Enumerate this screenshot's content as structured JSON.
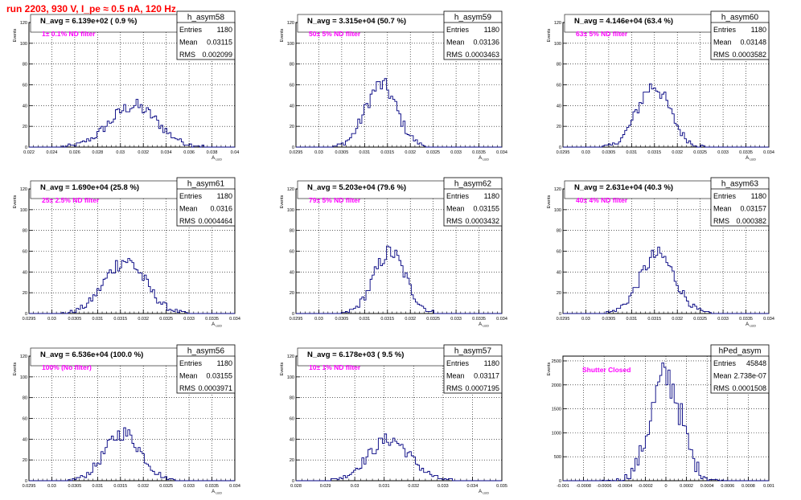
{
  "canvas_title": "run 2203,   930 V, I_pe ≈ 0.5 nA, 120 Hz",
  "colors": {
    "hist": "#000080",
    "annotation": "#ff00ff",
    "title": "#ff0000",
    "grid": "#000000"
  },
  "chart_data": [
    {
      "type": "histogram",
      "name": "h_asym58",
      "ylabel": "Events",
      "xlabel": "A_LED",
      "xlim": [
        0.022,
        0.04
      ],
      "ylim": [
        0,
        120
      ],
      "xticks": [
        "0.022",
        "0.024",
        "0.026",
        "0.028",
        "0.03",
        "0.032",
        "0.034",
        "0.036",
        "0.038",
        "0.04"
      ],
      "yticks": [
        "0",
        "20",
        "40",
        "60",
        "80",
        "100",
        "120"
      ],
      "navg": "N_avg = 6.139e+02 ( 0.9 %)",
      "filter": "1± 0.1% ND filter",
      "stats": {
        "Entries": "1180",
        "Mean": "0.03115",
        "RMS": "0.002099"
      },
      "mean": 0.03115,
      "rms": 0.002099,
      "peak": 45
    },
    {
      "type": "histogram",
      "name": "h_asym59",
      "ylabel": "Events",
      "xlabel": "A_LED",
      "xlim": [
        0.0295,
        0.034
      ],
      "ylim": [
        0,
        120
      ],
      "xticks": [
        "0.0295",
        "0.03",
        "0.0305",
        "0.031",
        "0.0315",
        "0.032",
        "0.0325",
        "0.033",
        "0.0335",
        "0.034"
      ],
      "yticks": [
        "0",
        "20",
        "40",
        "60",
        "80",
        "100",
        "120"
      ],
      "navg": "N_avg = 3.315e+04 (50.7 %)",
      "filter": "50± 5% ND filter",
      "stats": {
        "Entries": "1180",
        "Mean": "0.03136",
        "RMS": "0.0003463"
      },
      "mean": 0.03136,
      "rms": 0.0003463,
      "peak": 68
    },
    {
      "type": "histogram",
      "name": "h_asym60",
      "ylabel": "Events",
      "xlabel": "A_LED",
      "xlim": [
        0.0295,
        0.034
      ],
      "ylim": [
        0,
        120
      ],
      "xticks": [
        "0.0295",
        "0.03",
        "0.0305",
        "0.031",
        "0.0315",
        "0.032",
        "0.0325",
        "0.033",
        "0.0335",
        "0.034"
      ],
      "yticks": [
        "0",
        "20",
        "40",
        "60",
        "80",
        "100",
        "120"
      ],
      "navg": "N_avg = 4.146e+04 (63.4 %)",
      "filter": "63± 5% ND filter",
      "stats": {
        "Entries": "1180",
        "Mean": "0.03148",
        "RMS": "0.0003582"
      },
      "mean": 0.03148,
      "rms": 0.0003582,
      "peak": 67
    },
    {
      "type": "histogram",
      "name": "h_asym61",
      "ylabel": "Events",
      "xlabel": "A_LED",
      "xlim": [
        0.0295,
        0.034
      ],
      "ylim": [
        0,
        120
      ],
      "xticks": [
        "0.0295",
        "0.03",
        "0.0305",
        "0.031",
        "0.0315",
        "0.032",
        "0.0325",
        "0.033",
        "0.0335",
        "0.034"
      ],
      "yticks": [
        "0",
        "20",
        "40",
        "60",
        "80",
        "100",
        "120"
      ],
      "navg": "N_avg = 1.690e+04 (25.8 %)",
      "filter": "25± 2.5% ND filter",
      "stats": {
        "Entries": "1180",
        "Mean": "0.0316",
        "RMS": "0.0004464"
      },
      "mean": 0.0316,
      "rms": 0.0004464,
      "peak": 58
    },
    {
      "type": "histogram",
      "name": "h_asym62",
      "ylabel": "Events",
      "xlabel": "A_LED",
      "xlim": [
        0.0295,
        0.034
      ],
      "ylim": [
        0,
        120
      ],
      "xticks": [
        "0.0295",
        "0.03",
        "0.0305",
        "0.031",
        "0.0315",
        "0.032",
        "0.0325",
        "0.033",
        "0.0335",
        "0.034"
      ],
      "yticks": [
        "0",
        "20",
        "40",
        "60",
        "80",
        "100",
        "120"
      ],
      "navg": "N_avg = 5.203e+04 (79.6 %)",
      "filter": "79± 5% ND filter",
      "stats": {
        "Entries": "1180",
        "Mean": "0.03155",
        "RMS": "0.0003432"
      },
      "mean": 0.03155,
      "rms": 0.0003432,
      "peak": 67
    },
    {
      "type": "histogram",
      "name": "h_asym63",
      "ylabel": "Events",
      "xlabel": "A_LED",
      "xlim": [
        0.0295,
        0.034
      ],
      "ylim": [
        0,
        120
      ],
      "xticks": [
        "0.0295",
        "0.03",
        "0.0305",
        "0.031",
        "0.0315",
        "0.032",
        "0.0325",
        "0.033",
        "0.0335",
        "0.034"
      ],
      "yticks": [
        "0",
        "20",
        "40",
        "60",
        "80",
        "100",
        "120"
      ],
      "navg": "N_avg = 2.631e+04 (40.3 %)",
      "filter": "40± 4% ND filter",
      "stats": {
        "Entries": "1180",
        "Mean": "0.03157",
        "RMS": "0.000382"
      },
      "mean": 0.03157,
      "rms": 0.000382,
      "peak": 64
    },
    {
      "type": "histogram",
      "name": "h_asym56",
      "ylabel": "Events",
      "xlabel": "A_LED",
      "xlim": [
        0.0295,
        0.034
      ],
      "ylim": [
        0,
        120
      ],
      "xticks": [
        "0.0295",
        "0.03",
        "0.0305",
        "0.031",
        "0.0315",
        "0.032",
        "0.0325",
        "0.033",
        "0.0335",
        "0.034"
      ],
      "yticks": [
        "0",
        "20",
        "40",
        "60",
        "80",
        "100",
        "120"
      ],
      "navg": "N_avg = 6.536e+04 (100.0 %)",
      "filter": "100% (No filter)",
      "stats": {
        "Entries": "1180",
        "Mean": "0.03155",
        "RMS": "0.0003971"
      },
      "mean": 0.03155,
      "rms": 0.0003971,
      "peak": 52
    },
    {
      "type": "histogram",
      "name": "h_asym57",
      "ylabel": "Events",
      "xlabel": "A_LED",
      "xlim": [
        0.028,
        0.035
      ],
      "ylim": [
        0,
        120
      ],
      "xticks": [
        "0.028",
        "0.029",
        "0.03",
        "0.031",
        "0.032",
        "0.033",
        "0.034",
        "0.035"
      ],
      "yticks": [
        "0",
        "20",
        "40",
        "60",
        "80",
        "100",
        "120"
      ],
      "navg": "N_avg = 6.178e+03 ( 9.5 %)",
      "filter": "10± 1% ND filter",
      "stats": {
        "Entries": "1180",
        "Mean": "0.03117",
        "RMS": "0.0007195"
      },
      "mean": 0.03117,
      "rms": 0.0007195,
      "peak": 45
    },
    {
      "type": "histogram",
      "name": "hPed_asym",
      "ylabel": "Events",
      "xlabel": "",
      "xlim": [
        -0.001,
        0.001
      ],
      "ylim": [
        0,
        2600
      ],
      "xticks": [
        "-0.001",
        "-0.0008",
        "-0.0006",
        "-0.0004",
        "-0.0002",
        "0",
        "0.0002",
        "0.0004",
        "0.0006",
        "0.0008",
        "0.001"
      ],
      "yticks": [
        "0",
        "500",
        "1000",
        "1500",
        "2000",
        "2500"
      ],
      "navg": "",
      "filter": "Shutter Closed",
      "stats": {
        "Entries": "45848",
        "Mean": "2.738e-07",
        "RMS": "0.0001508"
      },
      "mean": 2.738e-07,
      "rms": 0.0001508,
      "peak": 2450
    }
  ]
}
